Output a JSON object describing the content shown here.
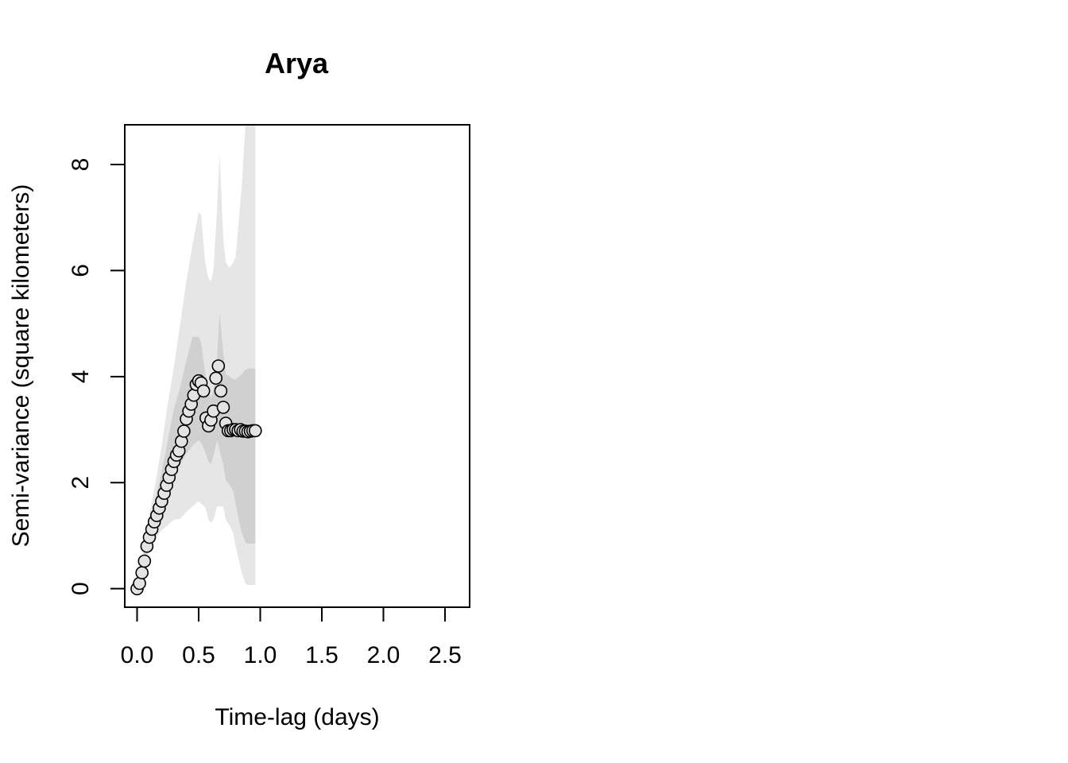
{
  "chart_data": {
    "type": "scatter",
    "title": "Arya",
    "xlabel": "Time-lag (days)",
    "ylabel": "Semi-variance (square kilometers)",
    "xlim": [
      -0.1,
      2.7
    ],
    "ylim": [
      -0.35,
      8.75
    ],
    "x_ticks": [
      "0.0",
      "0.5",
      "1.0",
      "1.5",
      "2.0",
      "2.5"
    ],
    "x_tick_values": [
      0,
      0.5,
      1.0,
      1.5,
      2.0,
      2.5
    ],
    "y_ticks": [
      "0",
      "2",
      "4",
      "6",
      "8"
    ],
    "y_tick_values": [
      0,
      2,
      4,
      6,
      8
    ],
    "grid": false,
    "colors": {
      "outer_band": "#e6e6e6",
      "inner_band": "#d0d0d0",
      "point_fill": "#e3e3e3",
      "point_stroke": "#000000"
    },
    "bands": {
      "x": [
        0,
        0.05,
        0.1,
        0.15,
        0.2,
        0.25,
        0.3,
        0.35,
        0.4,
        0.45,
        0.5,
        0.52,
        0.55,
        0.58,
        0.6,
        0.62,
        0.65,
        0.67,
        0.7,
        0.72,
        0.75,
        0.78,
        0.8,
        0.85,
        0.88,
        0.9,
        0.92,
        0.96
      ],
      "outer_lo": [
        0,
        0.35,
        0.7,
        0.95,
        1.1,
        1.2,
        1.3,
        1.32,
        1.45,
        1.55,
        1.65,
        1.6,
        1.55,
        1.3,
        1.25,
        1.3,
        1.55,
        1.55,
        1.55,
        1.3,
        1.2,
        1.05,
        0.8,
        0.3,
        0.1,
        0.07,
        0.07,
        0.07
      ],
      "inner_lo": [
        0,
        0.4,
        0.9,
        1.3,
        1.6,
        1.9,
        2.1,
        2.35,
        2.55,
        2.7,
        2.8,
        2.75,
        2.6,
        2.4,
        2.35,
        2.5,
        2.8,
        2.6,
        2.35,
        2.05,
        1.95,
        1.85,
        1.6,
        1.05,
        0.87,
        0.85,
        0.85,
        0.85
      ],
      "inner_hi": [
        0,
        0.6,
        1.2,
        1.7,
        2.2,
        2.8,
        3.4,
        3.8,
        4.3,
        4.75,
        4.75,
        4.65,
        4.1,
        3.7,
        3.6,
        3.75,
        4.4,
        5.2,
        4.45,
        4.05,
        4.0,
        3.95,
        3.95,
        4.05,
        4.13,
        4.15,
        4.15,
        4.15
      ],
      "outer_hi": [
        0,
        0.7,
        1.4,
        2.0,
        2.7,
        3.5,
        4.2,
        5.0,
        5.8,
        6.5,
        7.1,
        7.05,
        6.2,
        5.85,
        5.8,
        6.0,
        7.2,
        8.2,
        6.6,
        6.15,
        6.05,
        6.15,
        6.25,
        7.6,
        8.75,
        8.75,
        8.75,
        8.75
      ]
    },
    "points": {
      "x": [
        0.0,
        0.02,
        0.04,
        0.06,
        0.08,
        0.1,
        0.12,
        0.14,
        0.16,
        0.18,
        0.2,
        0.22,
        0.24,
        0.26,
        0.28,
        0.3,
        0.32,
        0.34,
        0.36,
        0.38,
        0.4,
        0.42,
        0.44,
        0.46,
        0.48,
        0.5,
        0.52,
        0.54,
        0.56,
        0.58,
        0.6,
        0.62,
        0.64,
        0.66,
        0.68,
        0.7,
        0.72,
        0.74,
        0.76,
        0.78,
        0.8,
        0.82,
        0.84,
        0.86,
        0.88,
        0.9,
        0.92,
        0.94,
        0.96
      ],
      "y": [
        0.0,
        0.1,
        0.3,
        0.52,
        0.8,
        0.97,
        1.12,
        1.26,
        1.38,
        1.52,
        1.65,
        1.8,
        1.95,
        2.1,
        2.25,
        2.4,
        2.52,
        2.6,
        2.78,
        2.97,
        3.2,
        3.35,
        3.48,
        3.65,
        3.85,
        3.92,
        3.88,
        3.73,
        3.22,
        3.07,
        3.18,
        3.35,
        3.97,
        4.2,
        3.73,
        3.42,
        3.12,
        2.98,
        2.98,
        3.0,
        3.0,
        2.98,
        3.0,
        2.97,
        2.97,
        2.96,
        2.97,
        2.98,
        2.98
      ]
    }
  }
}
